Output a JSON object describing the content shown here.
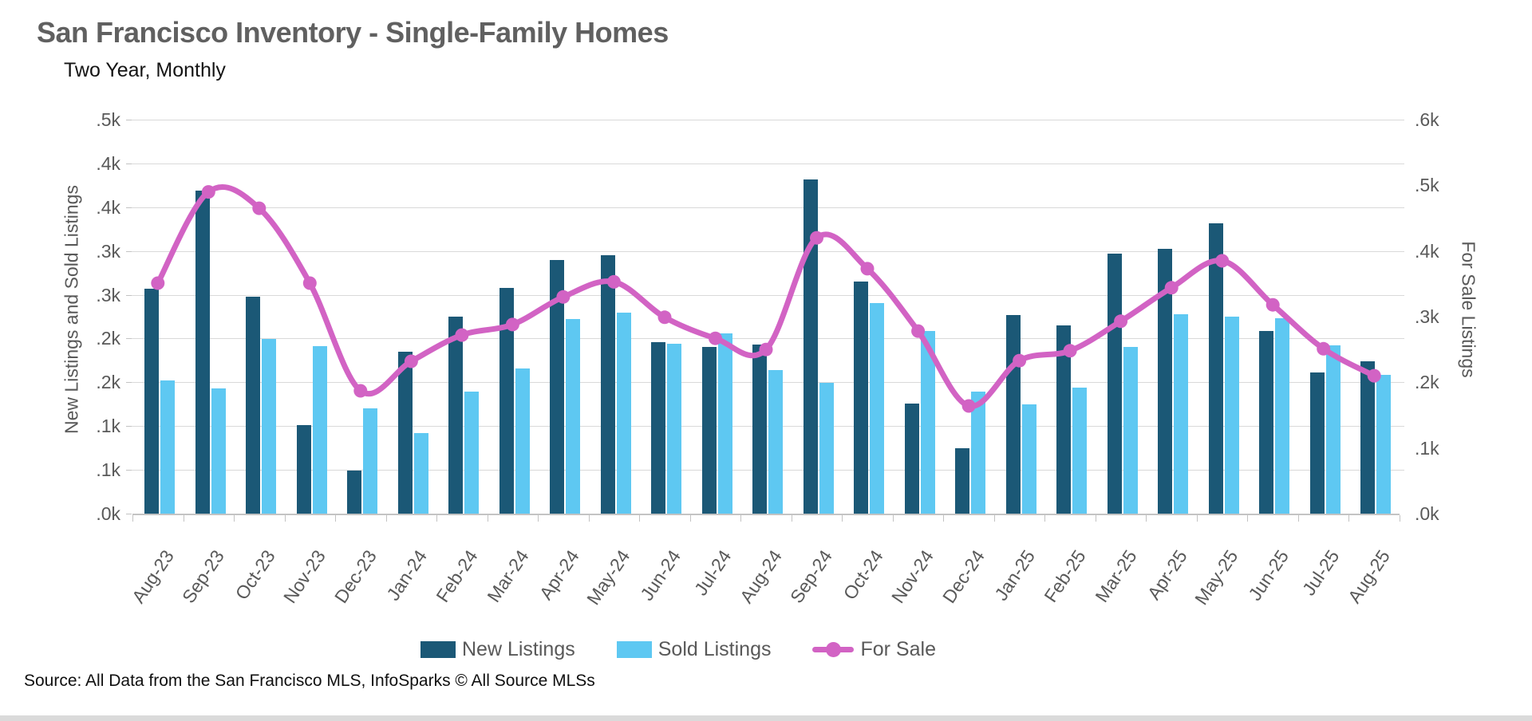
{
  "page": {
    "title": "San Francisco Inventory - Single-Family Homes",
    "subtitle": "Two Year, Monthly",
    "source": "Source: All Data from the San Francisco MLS, InfoSparks © All Source MLSs"
  },
  "chart_data": {
    "type": "bar",
    "title": "San Francisco Inventory - Single-Family Homes",
    "subtitle": "Two Year, Monthly",
    "categories": [
      "Aug-23",
      "Sep-23",
      "Oct-23",
      "Nov-23",
      "Dec-23",
      "Jan-24",
      "Feb-24",
      "Mar-24",
      "Apr-24",
      "May-24",
      "Jun-24",
      "Jul-24",
      "Aug-24",
      "Sep-24",
      "Oct-24",
      "Nov-24",
      "Dec-24",
      "Jan-25",
      "Feb-25",
      "Mar-25",
      "Apr-25",
      "May-25",
      "Jun-25",
      "Jul-25",
      "Aug-25"
    ],
    "series": [
      {
        "name": "New Listings",
        "type": "bar",
        "axis": "left",
        "color": "#1b5876",
        "values": [
          285,
          410,
          275,
          112,
          55,
          205,
          250,
          286,
          322,
          328,
          218,
          212,
          215,
          424,
          295,
          140,
          83,
          252,
          239,
          330,
          336,
          368,
          232,
          179,
          193
        ]
      },
      {
        "name": "Sold Listings",
        "type": "bar",
        "axis": "left",
        "color": "#5ec8f2",
        "values": [
          169,
          159,
          222,
          213,
          134,
          102,
          155,
          184,
          247,
          255,
          216,
          229,
          182,
          166,
          267,
          232,
          155,
          139,
          160,
          212,
          253,
          250,
          248,
          214,
          176
        ]
      },
      {
        "name": "For Sale",
        "type": "line",
        "axis": "right",
        "color": "#d263c4",
        "values": [
          351,
          490,
          465,
          351,
          187,
          232,
          272,
          288,
          330,
          353,
          299,
          267,
          250,
          420,
          373,
          278,
          164,
          233,
          248,
          293,
          344,
          385,
          318,
          251,
          210
        ]
      }
    ],
    "left_axis": {
      "label": "New Listings and Sold Listings",
      "range": [
        0,
        500
      ],
      "tick_labels_top_to_bottom": [
        ".5k",
        ".4k",
        ".4k",
        ".3k",
        ".3k",
        ".2k",
        ".2k",
        ".1k",
        ".1k",
        ".0k"
      ]
    },
    "right_axis": {
      "label": "For Sale Listings",
      "range": [
        0,
        600
      ],
      "tick_labels_top_to_bottom": [
        ".6k",
        ".5k",
        ".4k",
        ".3k",
        ".2k",
        ".1k",
        ".0k"
      ]
    },
    "grid": "horizontal",
    "legend_position": "bottom",
    "xlabel": "",
    "ylabel": "New Listings and Sold Listings"
  }
}
